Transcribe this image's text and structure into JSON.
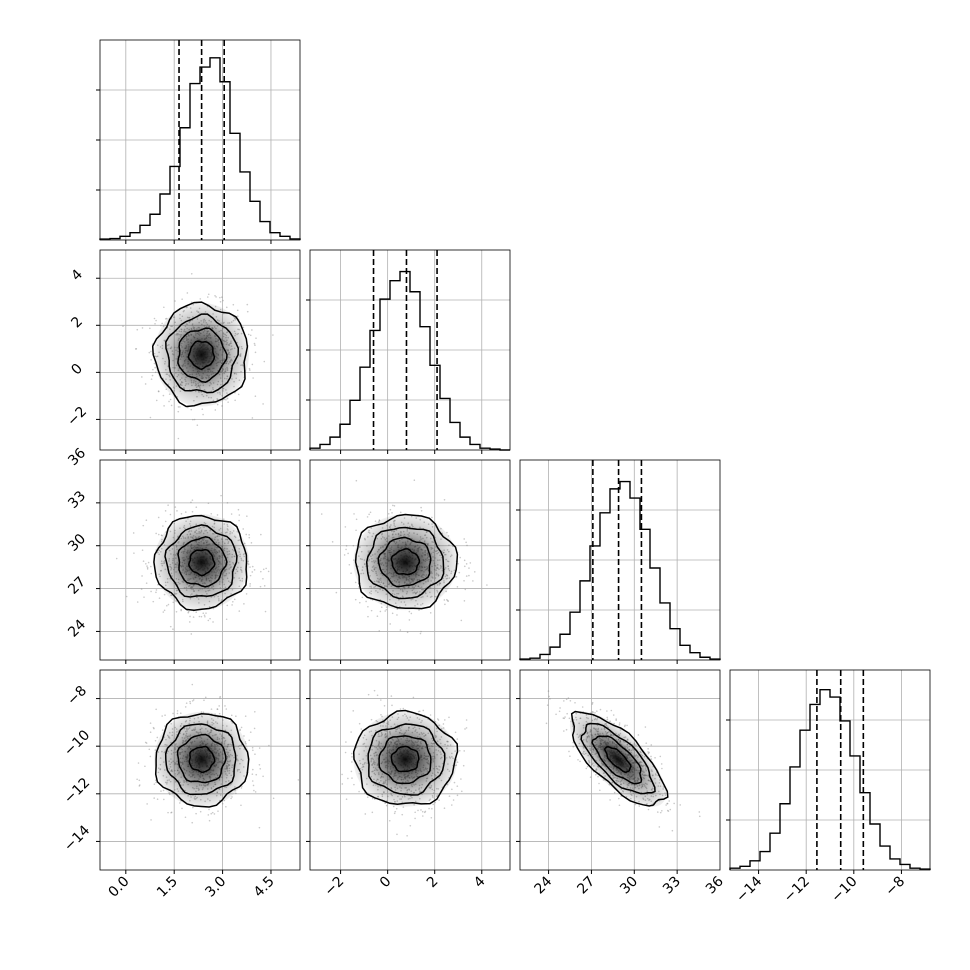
{
  "chart_data": {
    "type": "corner",
    "grid": true,
    "parameters": [
      {
        "ticks": [
          0.0,
          1.5,
          3.0,
          4.5
        ],
        "tick_labels": [
          "0.0",
          "1.5",
          "3.0",
          "4.5"
        ],
        "range": [
          -0.8,
          5.4
        ],
        "quantiles": [
          1.65,
          2.35,
          3.05
        ],
        "hist": [
          0.005,
          0.008,
          0.02,
          0.04,
          0.08,
          0.14,
          0.25,
          0.4,
          0.61,
          0.85,
          0.94,
          0.99,
          0.86,
          0.58,
          0.37,
          0.21,
          0.1,
          0.04,
          0.02,
          0.006
        ]
      },
      {
        "ticks": [
          -2,
          0,
          2,
          4
        ],
        "tick_labels": [
          "−2",
          "0",
          "2",
          "4"
        ],
        "range": [
          -3.3,
          5.2
        ],
        "quantiles": [
          -0.6,
          0.8,
          2.1
        ],
        "hist": [
          0.01,
          0.03,
          0.07,
          0.14,
          0.27,
          0.45,
          0.65,
          0.82,
          0.92,
          0.97,
          0.86,
          0.67,
          0.46,
          0.28,
          0.15,
          0.07,
          0.03,
          0.01,
          0.005,
          0.0
        ]
      },
      {
        "ticks": [
          24,
          27,
          30,
          33
        ],
        "tick_labels": [
          "24",
          "27",
          "30",
          "33"
        ],
        "range": [
          22.0,
          36.0
        ],
        "quantiles": [
          27.1,
          28.9,
          30.5
        ],
        "hist": [
          0.005,
          0.01,
          0.03,
          0.07,
          0.14,
          0.26,
          0.43,
          0.62,
          0.8,
          0.93,
          0.97,
          0.88,
          0.71,
          0.5,
          0.31,
          0.17,
          0.08,
          0.04,
          0.015,
          0.005
        ]
      },
      {
        "ticks": [
          -14,
          -12,
          -10,
          -8
        ],
        "tick_labels": [
          "−14",
          "−12",
          "−10",
          "−8"
        ],
        "range": [
          -15.2,
          -6.8
        ],
        "quantiles": [
          -11.55,
          -10.55,
          -9.6
        ],
        "hist": [
          0.01,
          0.02,
          0.05,
          0.1,
          0.2,
          0.36,
          0.56,
          0.76,
          0.9,
          0.98,
          0.94,
          0.81,
          0.62,
          0.42,
          0.25,
          0.13,
          0.06,
          0.03,
          0.01,
          0.005
        ]
      }
    ],
    "extra_x_tick_labels": {
      "1": [],
      "3": []
    },
    "pairs": [
      {
        "row": 1,
        "col": 0,
        "mean": [
          2.35,
          0.75
        ],
        "std": [
          0.7,
          1.05
        ],
        "rho": 0.0
      },
      {
        "row": 2,
        "col": 0,
        "mean": [
          2.35,
          28.85
        ],
        "std": [
          0.7,
          1.6
        ],
        "rho": 0.0
      },
      {
        "row": 2,
        "col": 1,
        "mean": [
          0.75,
          28.85
        ],
        "std": [
          1.05,
          1.6
        ],
        "rho": 0.0
      },
      {
        "row": 3,
        "col": 0,
        "mean": [
          2.35,
          -10.55
        ],
        "std": [
          0.7,
          0.95
        ],
        "rho": 0.0
      },
      {
        "row": 3,
        "col": 1,
        "mean": [
          0.75,
          -10.55
        ],
        "std": [
          1.05,
          0.95
        ],
        "rho": 0.0
      },
      {
        "row": 3,
        "col": 2,
        "mean": [
          28.85,
          -10.55
        ],
        "std": [
          1.6,
          0.95
        ],
        "rho": -0.72
      }
    ],
    "x_tick_extra_last_col2": "36"
  }
}
